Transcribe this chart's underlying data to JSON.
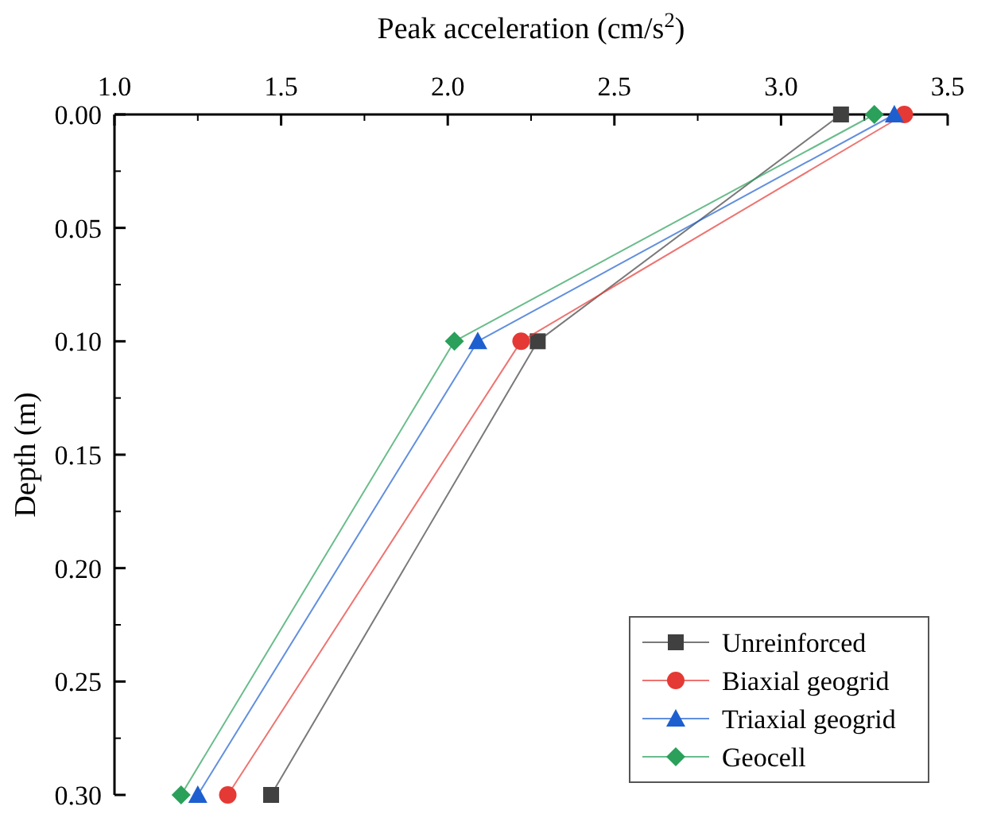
{
  "chart_data": {
    "type": "line",
    "xlabel": "Peak acceleration (cm/s$^{2}$)",
    "ylabel": "Depth (m)",
    "xlim": [
      1.0,
      3.5
    ],
    "xticks": [
      {
        "value": 1.0,
        "label": "1.0"
      },
      {
        "value": 1.5,
        "label": "1.5"
      },
      {
        "value": 2.0,
        "label": "2.0"
      },
      {
        "value": 2.5,
        "label": "2.5"
      },
      {
        "value": 3.0,
        "label": "3.0"
      },
      {
        "value": 3.5,
        "label": "3.5"
      }
    ],
    "ylim": [
      0.3,
      0.0
    ],
    "yticks": [
      {
        "value": 0,
        "label": "0.00"
      },
      {
        "value": 0.05,
        "label": "0.05"
      },
      {
        "value": 0.1,
        "label": "0.10"
      },
      {
        "value": 0.15,
        "label": "0.15"
      },
      {
        "value": 0.2,
        "label": "0.20"
      },
      {
        "value": 0.25,
        "label": "0.25"
      },
      {
        "value": 0.3,
        "label": "0.30"
      }
    ],
    "legend": "bottom right",
    "grid": false,
    "series": [
      {
        "name": "Unreinforced",
        "color": "#404040",
        "marker": "square",
        "x": [
          3.18,
          2.27,
          1.47
        ],
        "values": [
          0,
          0.1,
          0.3
        ]
      },
      {
        "name": "Biaxial geogrid",
        "color": "#e53935",
        "marker": "circle",
        "x": [
          3.37,
          2.22,
          1.34
        ],
        "values": [
          0,
          0.1,
          0.3
        ]
      },
      {
        "name": "Triaxial geogrid",
        "color": "#1e5fd0",
        "marker": "triangle",
        "x": [
          3.34,
          2.09,
          1.25
        ],
        "values": [
          0,
          0.1,
          0.3
        ]
      },
      {
        "name": "Geocell",
        "color": "#2aa05a",
        "marker": "diamond",
        "x": [
          3.28,
          2.02,
          1.2
        ],
        "values": [
          0,
          0.1,
          0.3
        ]
      }
    ]
  }
}
